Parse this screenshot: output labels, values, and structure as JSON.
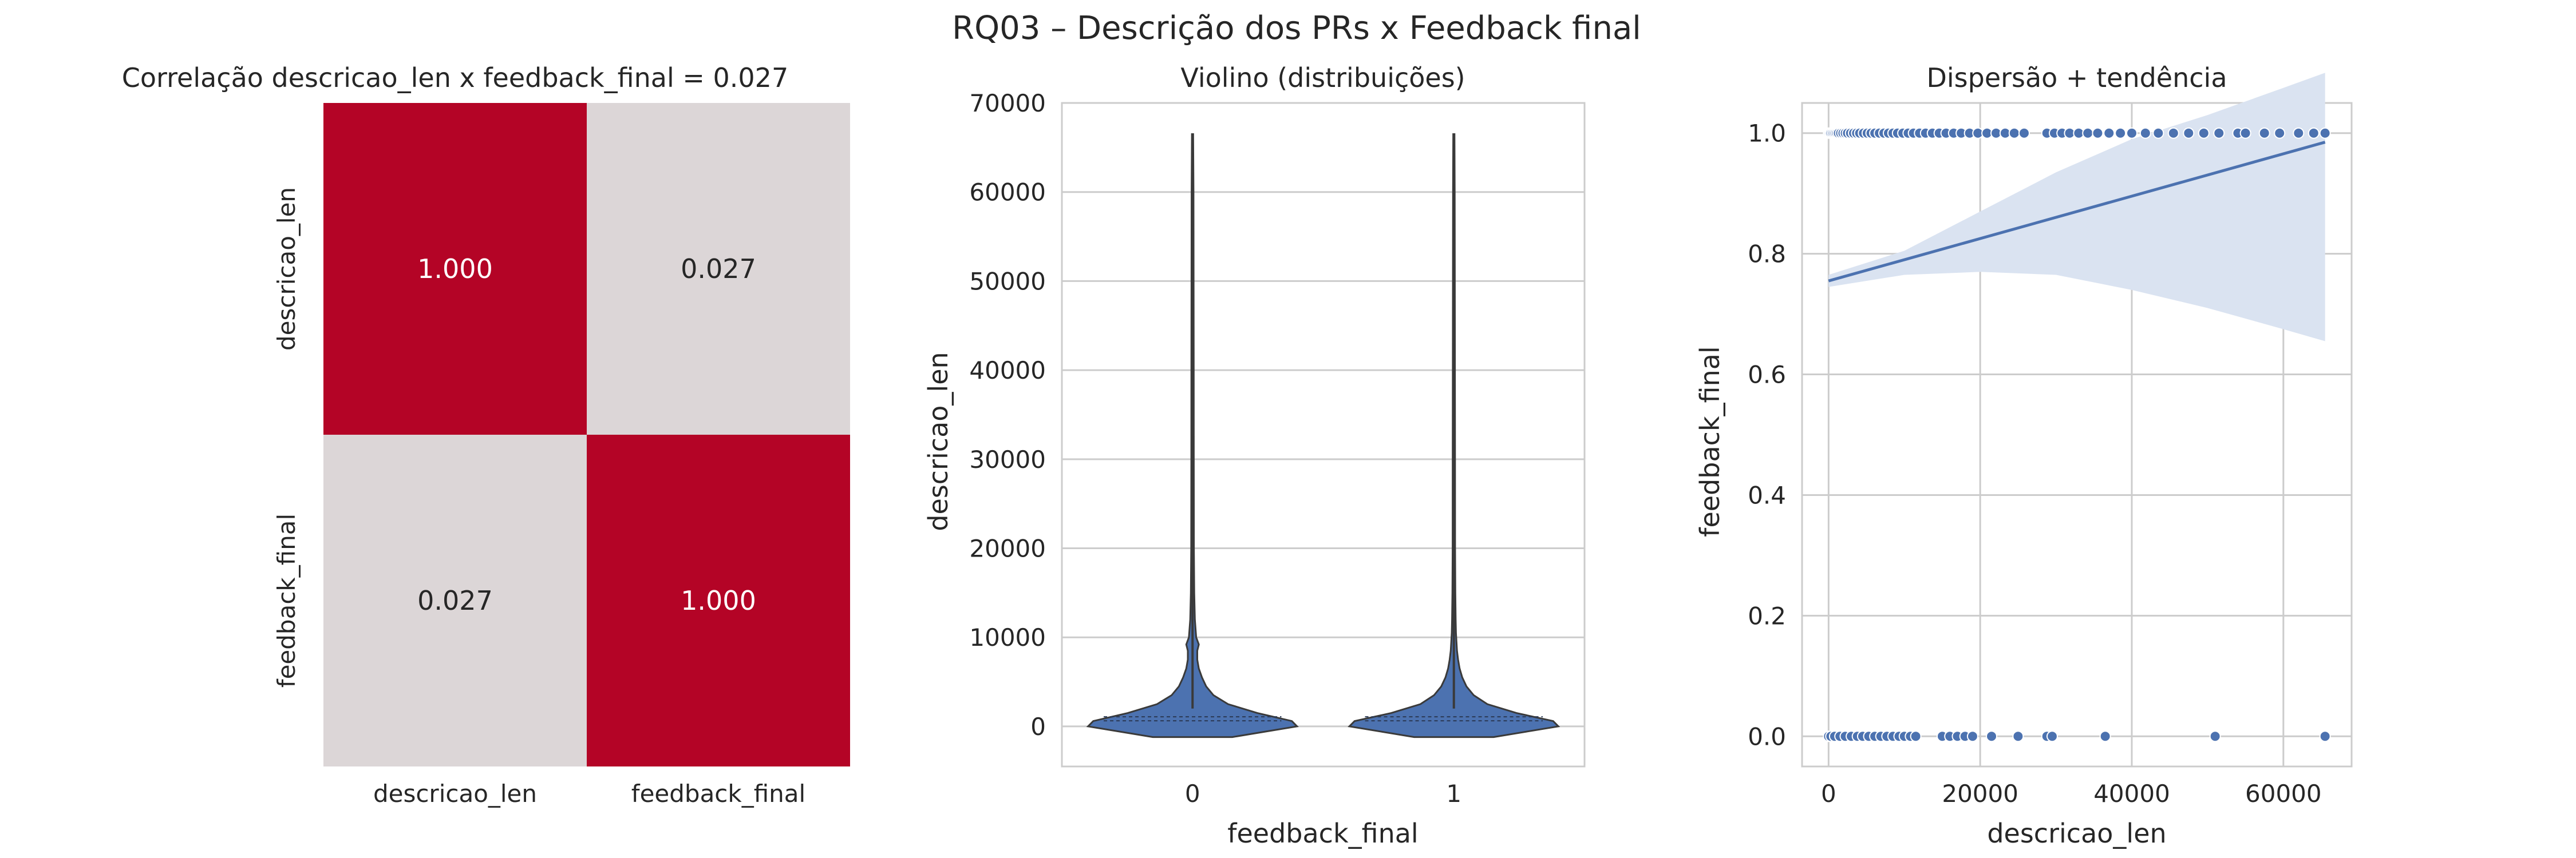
{
  "figure_title": "RQ03 – Descrição dos PRs x Feedback final",
  "colors": {
    "heat_high": "#b40426",
    "heat_low": "#dddcdc",
    "series": "#4c72b0",
    "band": "#dae3f1",
    "grid": "#cccccc",
    "frame": "#cccccc",
    "text": "#262626"
  },
  "chart_data": [
    {
      "type": "heatmap",
      "title": "Correlação descricao_len x feedback_final = 0.027",
      "rows": [
        "descricao_len",
        "feedback_final"
      ],
      "cols": [
        "descricao_len",
        "feedback_final"
      ],
      "values": [
        [
          1.0,
          0.027
        ],
        [
          0.027,
          1.0
        ]
      ],
      "cell_labels": [
        [
          "1.000",
          "0.027"
        ],
        [
          "0.027",
          "1.000"
        ]
      ],
      "colorbar": false
    },
    {
      "type": "violin",
      "title": "Violino (distribuições)",
      "xlabel": "feedback_final",
      "ylabel": "descricao_len",
      "categories": [
        "0",
        "1"
      ],
      "ylim": [
        -4500,
        70000
      ],
      "yticks": [
        0,
        10000,
        20000,
        30000,
        40000,
        50000,
        60000,
        70000
      ],
      "grid": true,
      "violins": [
        {
          "category": "0",
          "y_max": 66500,
          "y_min": -1200,
          "profile": [
            [
              -1200,
              0.38
            ],
            [
              0,
              1.0
            ],
            [
              600,
              0.95
            ],
            [
              1500,
              0.62
            ],
            [
              2500,
              0.34
            ],
            [
              3500,
              0.2
            ],
            [
              4500,
              0.13
            ],
            [
              5500,
              0.09
            ],
            [
              6500,
              0.06
            ],
            [
              7500,
              0.045
            ],
            [
              8500,
              0.045
            ],
            [
              9200,
              0.06
            ],
            [
              10000,
              0.035
            ],
            [
              12000,
              0.022
            ],
            [
              15000,
              0.016
            ],
            [
              20000,
              0.013
            ],
            [
              30000,
              0.012
            ],
            [
              40000,
              0.011
            ],
            [
              50000,
              0.01
            ],
            [
              60000,
              0.009
            ],
            [
              66500,
              0.006
            ]
          ]
        },
        {
          "category": "1",
          "y_max": 66500,
          "y_min": -1200,
          "profile": [
            [
              -1200,
              0.38
            ],
            [
              0,
              1.0
            ],
            [
              600,
              0.95
            ],
            [
              1500,
              0.6
            ],
            [
              2500,
              0.32
            ],
            [
              3500,
              0.19
            ],
            [
              4500,
              0.12
            ],
            [
              5500,
              0.08
            ],
            [
              6500,
              0.055
            ],
            [
              7500,
              0.04
            ],
            [
              8500,
              0.03
            ],
            [
              9500,
              0.025
            ],
            [
              10500,
              0.02
            ],
            [
              12000,
              0.017
            ],
            [
              15000,
              0.014
            ],
            [
              20000,
              0.012
            ],
            [
              30000,
              0.011
            ],
            [
              40000,
              0.01
            ],
            [
              50000,
              0.009
            ],
            [
              60000,
              0.008
            ],
            [
              66500,
              0.006
            ]
          ]
        }
      ]
    },
    {
      "type": "scatter",
      "title": "Dispersão + tendência",
      "xlabel": "descricao_len",
      "ylabel": "feedback_final",
      "xlim": [
        -3500,
        69000
      ],
      "ylim": [
        -0.05,
        1.05
      ],
      "xticks": [
        0,
        20000,
        40000,
        60000
      ],
      "yticks": [
        0.0,
        0.2,
        0.4,
        0.6,
        0.8,
        1.0
      ],
      "ytick_labels": [
        "0.0",
        "0.2",
        "0.4",
        "0.6",
        "0.8",
        "1.0"
      ],
      "grid": true,
      "points_y1": [
        0,
        150,
        300,
        500,
        700,
        900,
        1100,
        1300,
        1600,
        1900,
        2200,
        2500,
        2900,
        3300,
        3700,
        4100,
        4600,
        5100,
        5600,
        6100,
        6700,
        7300,
        7900,
        8500,
        9100,
        9800,
        10500,
        11200,
        12000,
        12800,
        13700,
        14600,
        15500,
        16500,
        17500,
        18600,
        19700,
        20900,
        22100,
        23300,
        24500,
        25800,
        28800,
        29800,
        30800,
        31800,
        33000,
        34200,
        35500,
        37000,
        38500,
        40000,
        41800,
        43500,
        45500,
        47500,
        49500,
        51500,
        54000,
        55000,
        57500,
        59500,
        62000,
        64000,
        65500
      ],
      "points_y0": [
        0,
        300,
        800,
        1500,
        2200,
        3000,
        3800,
        4500,
        5300,
        6100,
        6900,
        7700,
        8500,
        9300,
        10000,
        10800,
        11500,
        15000,
        16000,
        17000,
        18000,
        19000,
        21500,
        25000,
        28800,
        29500,
        36500,
        51000,
        65500
      ],
      "trend": {
        "x0": 0,
        "y0": 0.755,
        "x1": 65500,
        "y1": 0.985
      },
      "ci_band": [
        [
          0,
          0.745,
          0.765
        ],
        [
          10000,
          0.765,
          0.805
        ],
        [
          20000,
          0.77,
          0.87
        ],
        [
          30000,
          0.765,
          0.935
        ],
        [
          40000,
          0.74,
          0.99
        ],
        [
          50000,
          0.71,
          1.03
        ],
        [
          60000,
          0.675,
          1.075
        ],
        [
          65500,
          0.655,
          1.1
        ]
      ]
    }
  ]
}
